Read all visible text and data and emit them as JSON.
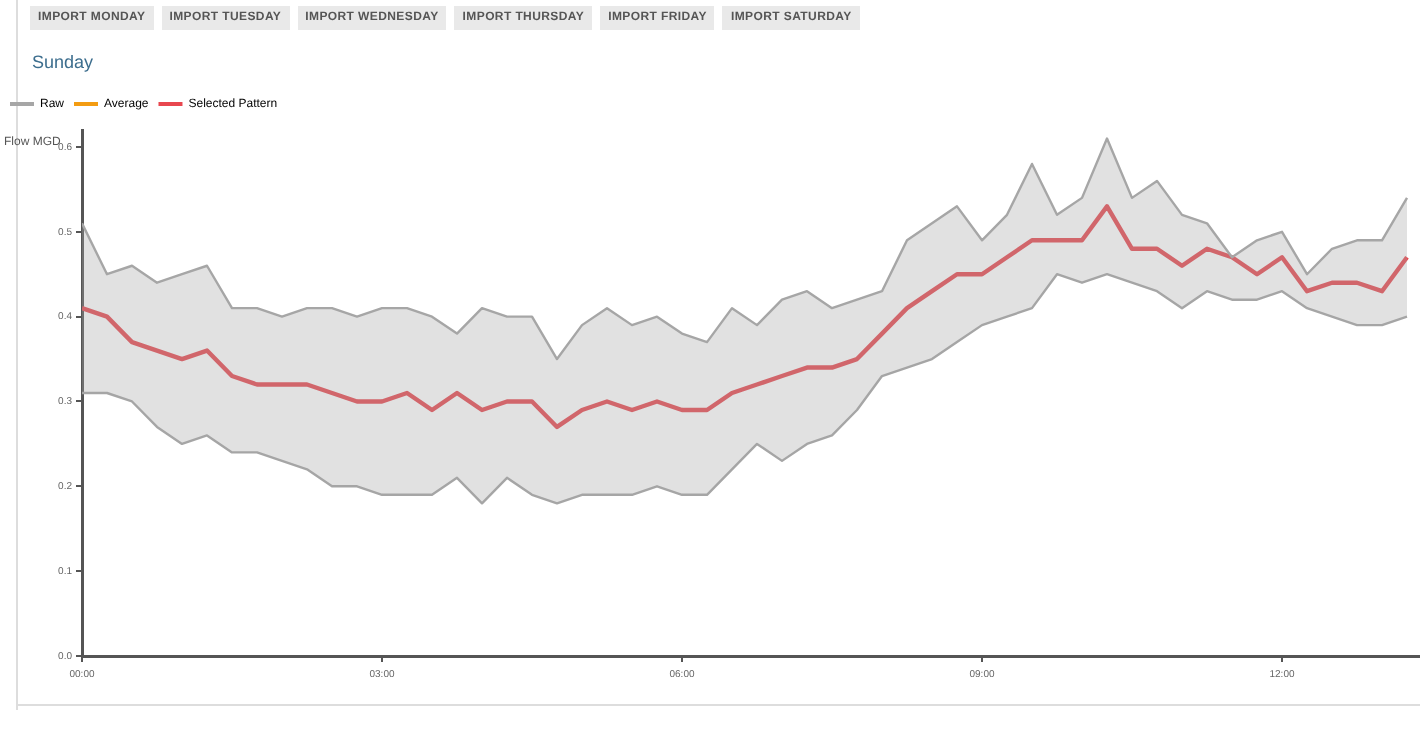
{
  "chart_data": {
    "type": "line",
    "title": "Sunday",
    "ylabel": "Flow MGD",
    "annotations": [
      "IMPORT MONDAY",
      "IMPORT TUESDAY",
      "IMPORT WEDNESDAY",
      "IMPORT THURSDAY",
      "IMPORT FRIDAY",
      "IMPORT SATURDAY"
    ],
    "x": [
      0,
      0.25,
      0.5,
      0.75,
      1,
      1.25,
      1.5,
      1.75,
      2,
      2.25,
      2.5,
      2.75,
      3,
      3.25,
      3.5,
      3.75,
      4,
      4.25,
      4.5,
      4.75,
      5,
      5.25,
      5.5,
      5.75,
      6,
      6.25,
      6.5,
      6.75,
      7,
      7.25,
      7.5,
      7.75,
      8,
      8.25,
      8.5,
      8.75,
      9,
      9.25,
      9.5,
      9.75,
      10,
      10.25,
      10.5,
      10.75,
      11,
      11.25,
      11.5,
      11.75,
      12,
      12.25,
      12.5,
      12.75,
      13,
      13.25
    ],
    "xlim": [
      0,
      13.38
    ],
    "xticks": [
      {
        "value": 0,
        "label": "00:00"
      },
      {
        "value": 3,
        "label": "03:00"
      },
      {
        "value": 6,
        "label": "06:00"
      },
      {
        "value": 9,
        "label": "09:00"
      },
      {
        "value": 12,
        "label": "12:00"
      }
    ],
    "ylim": [
      0,
      0.62
    ],
    "yticks": [
      {
        "value": 0,
        "label": "0.0"
      },
      0.1,
      0.2,
      0.3,
      0.4,
      0.5,
      0.6
    ],
    "legend": "top left",
    "series": [
      {
        "name": "Raw",
        "type": "area",
        "color": "#a6a6a6",
        "values": [
          0.51,
          0.45,
          0.46,
          0.44,
          0.45,
          0.46,
          0.41,
          0.41,
          0.4,
          0.41,
          0.41,
          0.4,
          0.41,
          0.41,
          0.4,
          0.38,
          0.41,
          0.4,
          0.4,
          0.35,
          0.39,
          0.41,
          0.39,
          0.4,
          0.38,
          0.37,
          0.41,
          0.39,
          0.42,
          0.43,
          0.41,
          0.42,
          0.43,
          0.49,
          0.51,
          0.53,
          0.49,
          0.52,
          0.58,
          0.52,
          0.54,
          0.61,
          0.54,
          0.56,
          0.52,
          0.51,
          0.47,
          0.49,
          0.5,
          0.45,
          0.48,
          0.49,
          0.49,
          0.54
        ]
      },
      {
        "type": "line",
        "color": "#a6a6a6",
        "values": [
          0.31,
          0.31,
          0.3,
          0.27,
          0.25,
          0.26,
          0.24,
          0.24,
          0.23,
          0.22,
          0.2,
          0.2,
          0.19,
          0.19,
          0.19,
          0.21,
          0.18,
          0.21,
          0.19,
          0.18,
          0.19,
          0.19,
          0.19,
          0.2,
          0.19,
          0.19,
          0.22,
          0.25,
          0.23,
          0.25,
          0.26,
          0.29,
          0.33,
          0.34,
          0.35,
          0.37,
          0.39,
          0.4,
          0.41,
          0.45,
          0.44,
          0.45,
          0.44,
          0.43,
          0.41,
          0.43,
          0.42,
          0.42,
          0.43,
          0.41,
          0.4,
          0.39,
          0.39,
          0.4
        ]
      },
      {
        "name": "Average",
        "color": "#f39c12",
        "values": [
          null,
          null,
          null,
          null,
          null,
          null,
          null,
          null,
          null,
          null,
          null,
          null,
          null,
          null,
          null,
          null,
          null,
          null,
          null,
          null,
          null,
          null,
          null,
          null,
          null,
          null,
          null,
          null,
          null,
          null,
          null,
          null,
          null,
          null,
          null,
          null,
          null,
          null,
          null,
          null,
          null,
          null,
          null,
          null,
          null,
          null,
          null,
          null,
          null,
          null,
          null,
          null,
          null,
          null
        ]
      },
      {
        "name": "Selected Pattern",
        "color": "#e8474f",
        "values": [
          0.41,
          0.4,
          0.37,
          0.36,
          0.35,
          0.36,
          0.33,
          0.32,
          0.32,
          0.32,
          0.31,
          0.3,
          0.3,
          0.31,
          0.29,
          0.31,
          0.29,
          0.3,
          0.3,
          0.27,
          0.29,
          0.3,
          0.29,
          0.3,
          0.29,
          0.29,
          0.31,
          0.32,
          0.33,
          0.34,
          0.34,
          0.35,
          0.38,
          0.41,
          0.43,
          0.45,
          0.45,
          0.47,
          0.49,
          0.49,
          0.49,
          0.53,
          0.48,
          0.48,
          0.46,
          0.48,
          0.47,
          0.45,
          0.47,
          0.43,
          0.44,
          0.44,
          0.43,
          0.47
        ]
      }
    ]
  }
}
